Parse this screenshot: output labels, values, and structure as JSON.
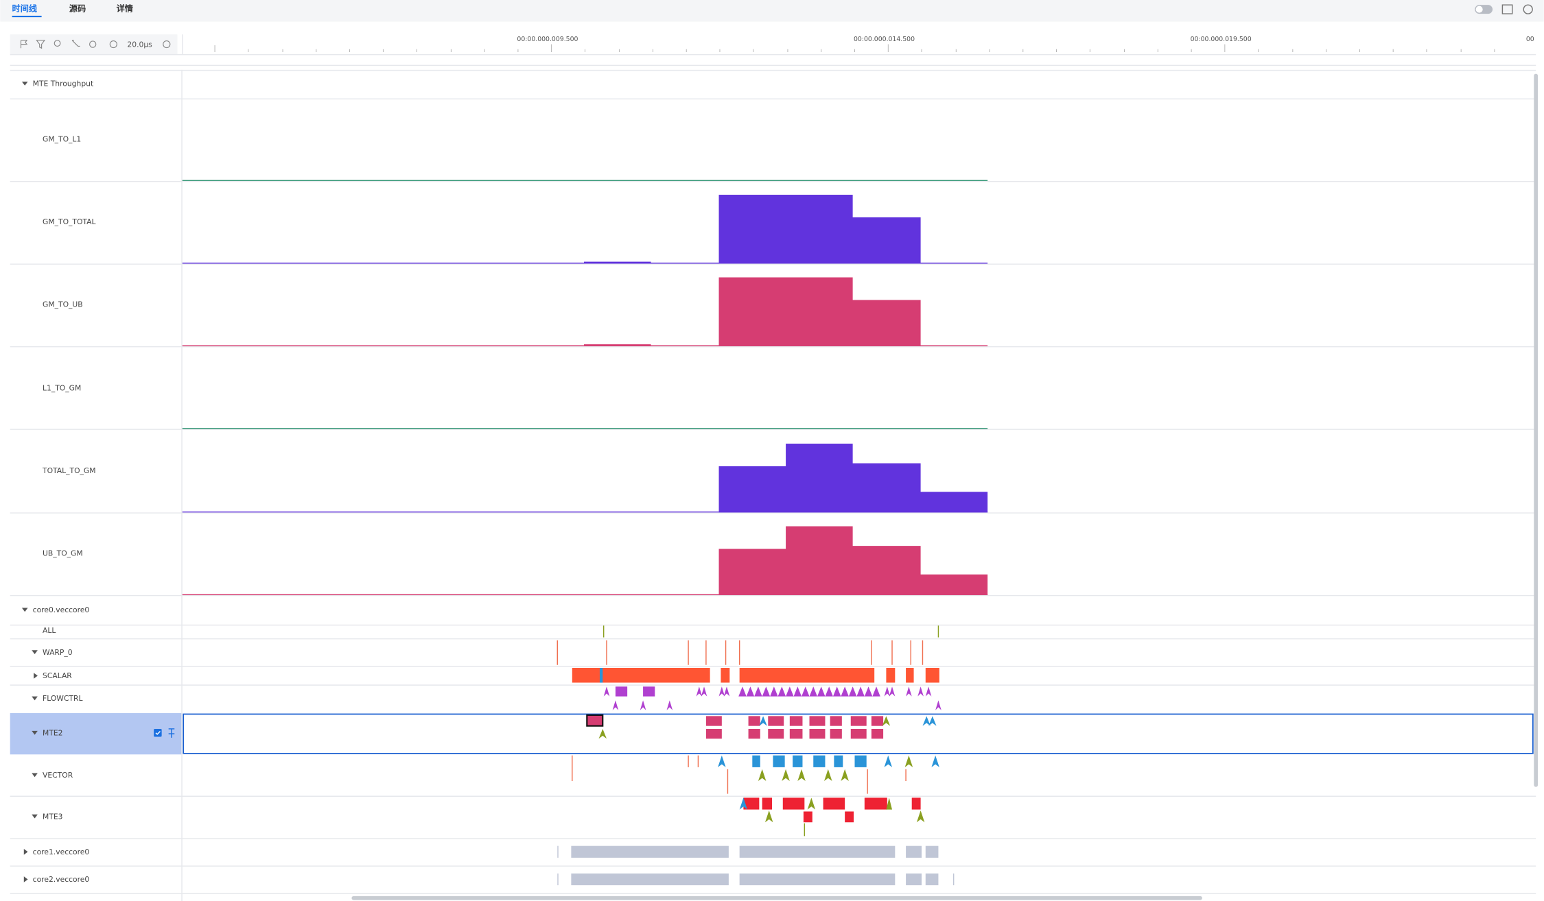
{
  "tabs": [
    "时间线",
    "源码",
    "详情"
  ],
  "toolbar": {
    "zoom": "20.0μs"
  },
  "time_ticks": [
    "00:00.000.009.500",
    "00:00.000.014.500",
    "00:00.000.019.500",
    "00"
  ],
  "tracks": {
    "group": "MTE Throughput",
    "throughput": [
      "GM_TO_L1",
      "GM_TO_TOTAL",
      "GM_TO_UB",
      "L1_TO_GM",
      "TOTAL_TO_GM",
      "UB_TO_GM"
    ],
    "core0": "core0.veccore0",
    "core0_rows": [
      "ALL",
      "WARP_0",
      "SCALAR",
      "FLOWCTRL",
      "MTE2",
      "VECTOR",
      "MTE3"
    ],
    "core1": "core1.veccore0",
    "core2": "core2.veccore0"
  }
}
